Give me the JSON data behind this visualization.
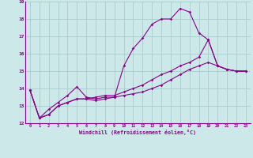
{
  "xlabel": "Windchill (Refroidissement éolien,°C)",
  "ylabel": "",
  "xlim": [
    -0.5,
    23.5
  ],
  "ylim": [
    12,
    19
  ],
  "xtick_labels": [
    "0",
    "1",
    "2",
    "3",
    "4",
    "5",
    "6",
    "7",
    "8",
    "9",
    "10",
    "11",
    "12",
    "13",
    "14",
    "15",
    "16",
    "17",
    "18",
    "19",
    "20",
    "21",
    "22",
    "23"
  ],
  "ytick_labels": [
    "12",
    "13",
    "14",
    "15",
    "16",
    "17",
    "18",
    "19"
  ],
  "background_color": "#cce8e8",
  "line_color": "#8b008b",
  "grid_color": "#aacccc",
  "series": [
    [
      13.9,
      12.3,
      12.8,
      13.2,
      13.6,
      14.1,
      13.5,
      13.4,
      13.5,
      13.5,
      15.3,
      16.3,
      16.9,
      17.7,
      18.0,
      18.0,
      18.6,
      18.4,
      17.2,
      16.8,
      15.3,
      15.1,
      15.0,
      15.0
    ],
    [
      13.9,
      12.3,
      12.5,
      13.0,
      13.2,
      13.4,
      13.4,
      13.3,
      13.4,
      13.5,
      13.6,
      13.7,
      13.8,
      14.0,
      14.2,
      14.5,
      14.8,
      15.1,
      15.3,
      15.5,
      15.3,
      15.1,
      15.0,
      15.0
    ],
    [
      13.9,
      12.3,
      12.5,
      13.0,
      13.2,
      13.4,
      13.4,
      13.5,
      13.6,
      13.6,
      13.8,
      14.0,
      14.2,
      14.5,
      14.8,
      15.0,
      15.3,
      15.5,
      15.8,
      16.8,
      15.3,
      15.1,
      15.0,
      15.0
    ]
  ]
}
